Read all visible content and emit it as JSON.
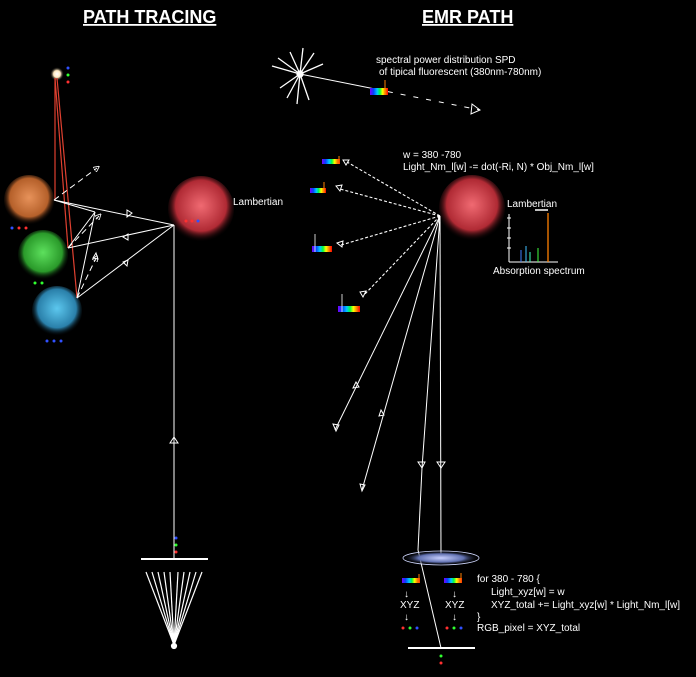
{
  "titles": {
    "left": "PATH TRACING",
    "right": "EMR PATH"
  },
  "labels": {
    "lambertian_left": "Lambertian",
    "lambertian_right": "Lambertian",
    "spd_line1": "spectral power distribution SPD",
    "spd_line2": "of tipical fluorescent (380nm-780nm)",
    "absorption": "Absorption spectrum",
    "xyz_a": "XYZ",
    "xyz_b": "XYZ",
    "arrow_down": "↓"
  },
  "code_top": {
    "line1": "w = 380 -780",
    "line2": "Light_Nm_l[w] -= dot(-Ri, N) * Obj_Nm_l[w]"
  },
  "code_bottom": {
    "line1": "for 380 - 780 {",
    "line2": "Light_xyz[w] = w",
    "line3": "XYZ_total += Light_xyz[w] * Light_Nm_l[w]",
    "line4": "}",
    "line5": "RGB_pixel = XYZ_total"
  },
  "colors": {
    "background": "#000000",
    "sphere_orange": "#e07a3a",
    "sphere_green": "#3fbf3f",
    "sphere_blue": "#3aa8d8",
    "sphere_red": "#d83a44",
    "ray_red": "#e04030",
    "ray_white": "#ffffff"
  }
}
